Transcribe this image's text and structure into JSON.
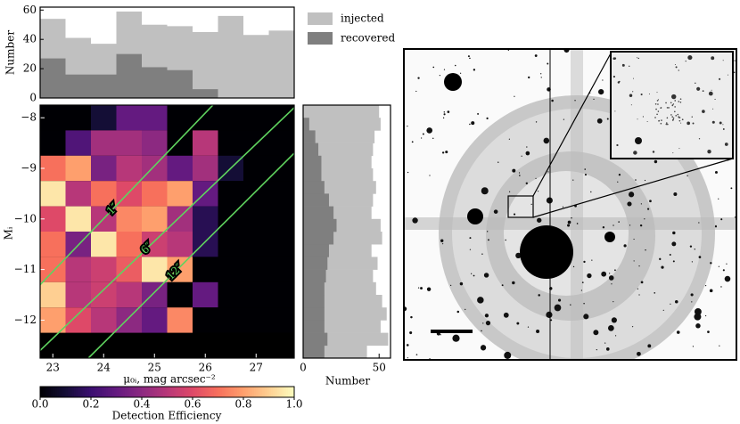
{
  "chart_data": [
    {
      "type": "histogram",
      "orientation": "vertical",
      "bins": [
        22.75,
        23.25,
        23.75,
        24.25,
        24.75,
        25.25,
        25.75,
        26.25,
        26.75,
        27.25,
        27.75
      ],
      "series": [
        {
          "name": "injected",
          "color": "#c0c0c0",
          "values": [
            54,
            41,
            37,
            59,
            50,
            49,
            45,
            56,
            43,
            46
          ]
        },
        {
          "name": "recovered",
          "color": "#7f7f7f",
          "values": [
            27,
            16,
            16,
            30,
            21,
            19,
            6,
            0,
            0,
            0
          ]
        }
      ],
      "xlim": [
        22.75,
        27.75
      ],
      "ylim": [
        0,
        62
      ],
      "yticks": [
        0,
        20,
        40,
        60
      ],
      "ylabel": "Number"
    },
    {
      "type": "heatmap",
      "xbins": [
        22.75,
        23.25,
        23.75,
        24.25,
        24.75,
        25.25,
        25.75,
        26.25,
        26.75,
        27.25,
        27.75
      ],
      "ybins": [
        -8.25,
        -8.75,
        -9.25,
        -9.75,
        -10.25,
        -10.75,
        -11.25,
        -11.75,
        -12.25,
        -12.75
      ],
      "z": [
        [
          0,
          0,
          0.1,
          0.3,
          0.3,
          0,
          0,
          0,
          0,
          0
        ],
        [
          0,
          0.25,
          0.45,
          0.45,
          0.4,
          0,
          0.5,
          0,
          0,
          0
        ],
        [
          0.7,
          0.8,
          0.35,
          0.5,
          0.45,
          0.3,
          0.45,
          0.1,
          0,
          0
        ],
        [
          0.95,
          0.5,
          0.7,
          0.6,
          0.7,
          0.8,
          0.3,
          0,
          0,
          0
        ],
        [
          0.6,
          0.95,
          0.5,
          0.75,
          0.8,
          0.45,
          0.15,
          0,
          0,
          0
        ],
        [
          0.7,
          0.35,
          0.95,
          0.7,
          0.55,
          0.5,
          0.15,
          0,
          0,
          0
        ],
        [
          0.7,
          0.5,
          0.55,
          0.65,
          0.95,
          0.8,
          0,
          0,
          0,
          0
        ],
        [
          0.9,
          0.5,
          0.55,
          0.5,
          0.35,
          0,
          0.3,
          0,
          0,
          0
        ],
        [
          0.8,
          0.6,
          0.5,
          0.4,
          0.3,
          0.75,
          0,
          0,
          0,
          0
        ]
      ],
      "xlim": [
        22.75,
        27.75
      ],
      "ylim": [
        -7.75,
        -12.75
      ],
      "xticks": [
        23,
        24,
        25,
        26,
        27
      ],
      "yticks": [
        {
          "value": -8,
          "label": "−8"
        },
        {
          "value": -9,
          "label": "−9"
        },
        {
          "value": -10,
          "label": "−10"
        },
        {
          "value": -11,
          "label": "−11"
        },
        {
          "value": -12,
          "label": "−12"
        }
      ],
      "xlabel": "μ₀ᵢ, mag arcsec⁻²",
      "ylabel": "Mᵢ",
      "colormap": "magma",
      "lines": [
        {
          "label": "1″",
          "color": "#5fd35f",
          "x": [
            22.75,
            26.15
          ],
          "y": [
            -11.3,
            -7.75
          ]
        },
        {
          "label": "6″",
          "color": "#5fd35f",
          "x": [
            22.75,
            27.75
          ],
          "y": [
            -12.6,
            -7.8
          ]
        },
        {
          "label": "12″",
          "color": "#5fd35f",
          "x": [
            23.7,
            27.75
          ],
          "y": [
            -12.75,
            -8.7
          ]
        }
      ],
      "colorbar": {
        "label": "Detection Efficiency",
        "lim": [
          0,
          1
        ],
        "ticks": [
          {
            "value": 0,
            "label": "0.0"
          },
          0.2,
          0.4,
          0.6,
          0.8,
          {
            "value": 1,
            "label": "1.0"
          }
        ]
      }
    },
    {
      "type": "histogram",
      "orientation": "horizontal",
      "bins": [
        -7.75,
        -8,
        -8.25,
        -8.5,
        -8.75,
        -9,
        -9.25,
        -9.5,
        -9.75,
        -10,
        -10.25,
        -10.5,
        -10.75,
        -11,
        -11.25,
        -11.5,
        -11.75,
        -12,
        -12.25,
        -12.5,
        -12.75
      ],
      "series": [
        {
          "name": "injected",
          "color": "#c0c0c0",
          "values": [
            50,
            51,
            47,
            46,
            45,
            46,
            48,
            46,
            45,
            51,
            52,
            45,
            49,
            46,
            48,
            52,
            55,
            51,
            56,
            42
          ]
        },
        {
          "name": "recovered",
          "color": "#7f7f7f",
          "values": [
            0,
            4,
            8,
            10,
            12,
            12,
            14,
            17,
            20,
            22,
            20,
            17,
            16,
            15,
            14,
            14,
            14,
            14,
            16,
            14
          ]
        }
      ],
      "xlim": [
        0,
        57.5
      ],
      "ylim": [
        -7.75,
        -12.75
      ],
      "xticks": [
        0,
        50
      ],
      "xlabel": "Number"
    }
  ]
}
